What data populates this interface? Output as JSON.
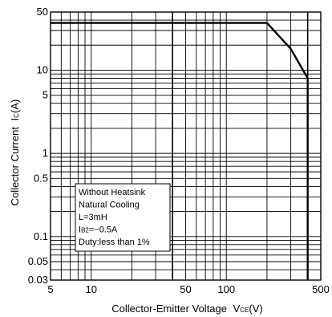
{
  "chart_data": {
    "type": "line",
    "xscale": "log",
    "yscale": "log",
    "xlim": [
      5,
      500
    ],
    "ylim": [
      0.03,
      50
    ],
    "grid": true,
    "xlabel": "Collector-Emitter Voltage",
    "xlabel_symbol_main": "V",
    "xlabel_symbol_sub": "CE",
    "xlabel_unit": "(V)",
    "ylabel": "Collector Current",
    "ylabel_symbol_main": "I",
    "ylabel_symbol_sub": "C",
    "ylabel_unit": "(A)",
    "x_ticks": [
      {
        "value": 5,
        "label": "5"
      },
      {
        "value": 10,
        "label": "10"
      },
      {
        "value": 50,
        "label": "50"
      },
      {
        "value": 100,
        "label": "100"
      },
      {
        "value": 500,
        "label": "500"
      }
    ],
    "y_ticks": [
      {
        "value": 50,
        "label": "50"
      },
      {
        "value": 10,
        "label": "10"
      },
      {
        "value": 5,
        "label": "5"
      },
      {
        "value": 1,
        "label": "1"
      },
      {
        "value": 0.5,
        "label": "0.5"
      },
      {
        "value": 0.1,
        "label": "0.1"
      },
      {
        "value": 0.05,
        "label": "0.05"
      },
      {
        "value": 0.03,
        "label": "0.03"
      }
    ],
    "x_grid": [
      5,
      6,
      7,
      8,
      9,
      10,
      20,
      30,
      40,
      50,
      60,
      70,
      80,
      90,
      100,
      200,
      300,
      400,
      500
    ],
    "x_grid_bold": [
      40,
      400
    ],
    "y_grid": [
      0.03,
      0.04,
      0.05,
      0.06,
      0.07,
      0.08,
      0.09,
      0.1,
      0.2,
      0.3,
      0.4,
      0.5,
      0.6,
      0.7,
      0.8,
      0.9,
      1,
      2,
      3,
      4,
      5,
      6,
      7,
      8,
      9,
      10,
      20,
      30,
      40,
      50
    ],
    "series": [
      {
        "x": [
          5,
          200,
          300,
          400,
          400
        ],
        "y": [
          37,
          37,
          18,
          8,
          0.03
        ]
      }
    ],
    "annotation": {
      "lines": [
        {
          "main": "Without Heatsink"
        },
        {
          "main": "Natural Cooling"
        },
        {
          "main": "L=3mH"
        },
        {
          "main": "I",
          "sub": "B2",
          "rest": "=−0.5A"
        },
        {
          "main": "Duty:less than 1%"
        }
      ]
    }
  }
}
